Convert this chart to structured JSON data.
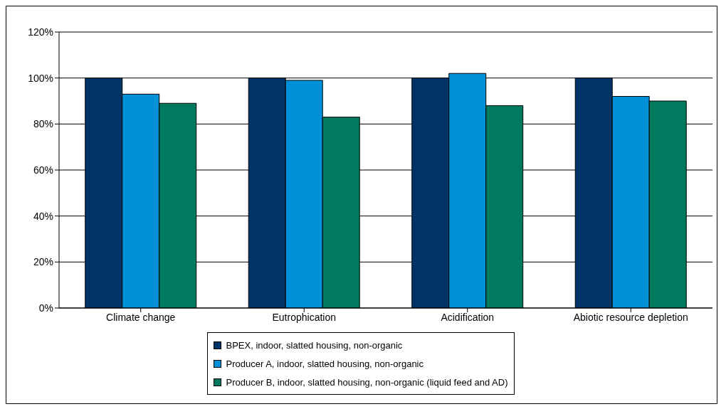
{
  "chart_data": {
    "type": "bar",
    "categories": [
      "Climate change",
      "Eutrophication",
      "Acidification",
      "Abiotic resource depletion"
    ],
    "series": [
      {
        "name": "BPEX, indoor, slatted housing, non-organic",
        "color": "#003366",
        "values": [
          100,
          100,
          100,
          100
        ]
      },
      {
        "name": "Producer A, indoor, slatted housing, non-organic",
        "color": "#0090d8",
        "values": [
          93,
          99,
          102,
          92
        ]
      },
      {
        "name": "Producer B, indoor, slatted housing, non-organic (liquid feed and AD)",
        "color": "#007a5e",
        "values": [
          89,
          83,
          88,
          90
        ]
      }
    ],
    "ylim": [
      0,
      120
    ],
    "yticks": [
      {
        "value": 0,
        "label": "0%"
      },
      {
        "value": 20,
        "label": "20%"
      },
      {
        "value": 40,
        "label": "40%"
      },
      {
        "value": 60,
        "label": "60%"
      },
      {
        "value": 80,
        "label": "80%"
      },
      {
        "value": 100,
        "label": "100%"
      },
      {
        "value": 120,
        "label": "120%"
      }
    ],
    "grid": "y",
    "legend": "bottom"
  }
}
